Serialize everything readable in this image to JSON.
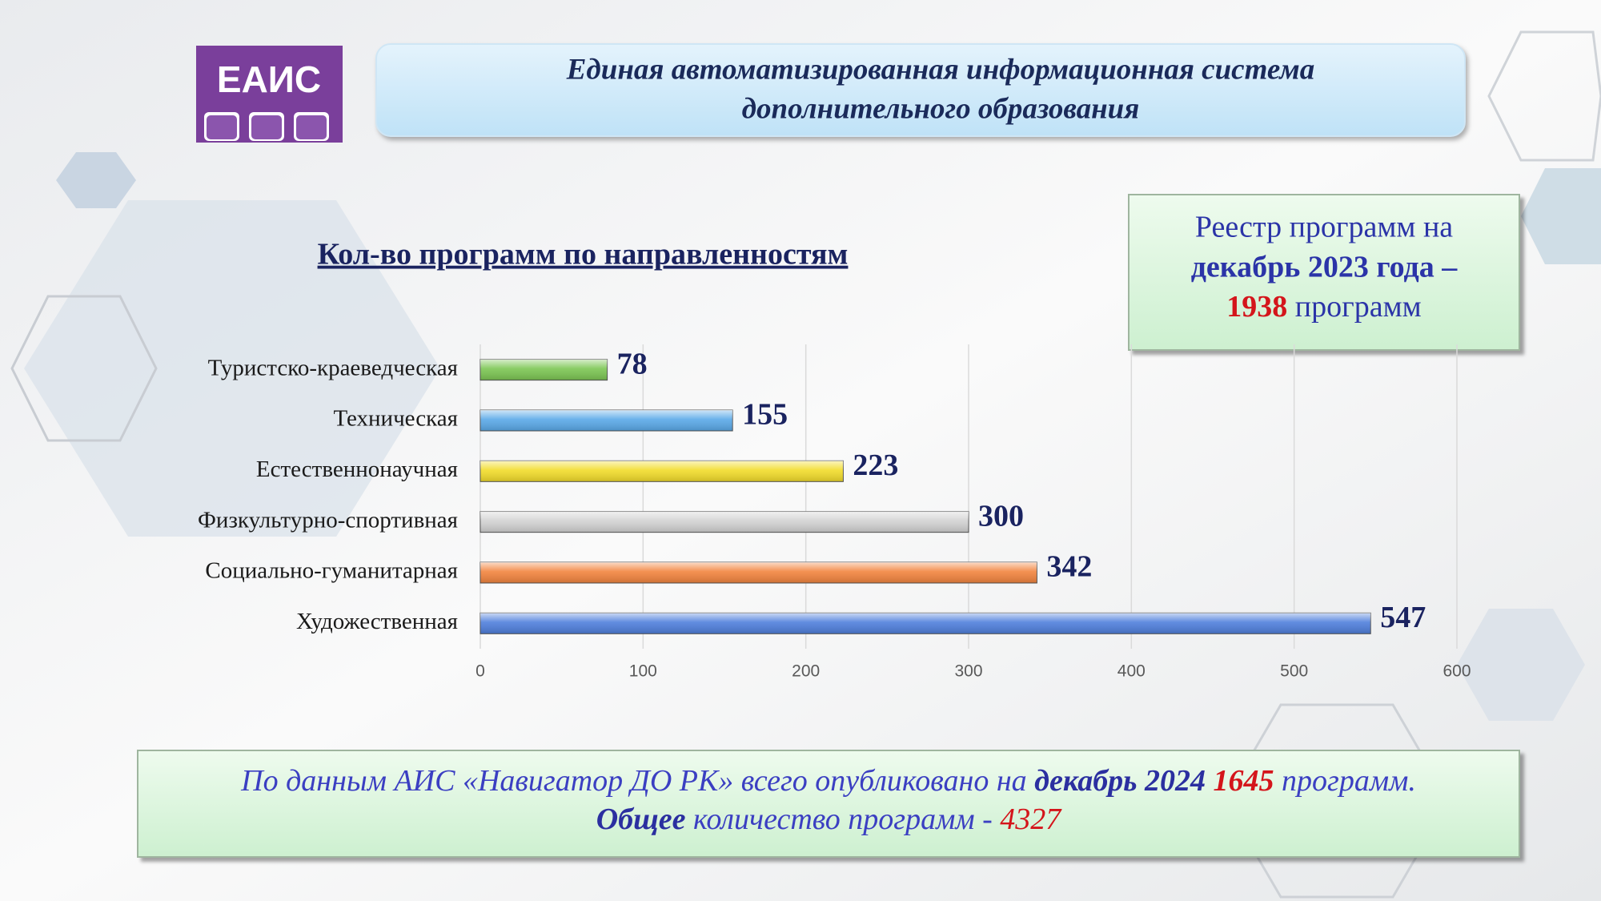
{
  "logo": "ЕАИС",
  "header": {
    "line1": "Единая автоматизированная информационная система",
    "line2": "дополнительного образования"
  },
  "registry": {
    "line1": "Реестр программ на",
    "line2": "декабрь 2023 года –",
    "count": "1938",
    "count_suffix": "программ"
  },
  "note": {
    "part1": "По данным АИС «Навигатор ДО РК» всего опубликовано на",
    "date": "декабрь 2024",
    "count": "1645",
    "suffix": "программ.",
    "total_word": "Общее",
    "total_text": "количество программ -",
    "total": "4327"
  },
  "chart_data": {
    "type": "hbar",
    "title": "Кол-во программ по направленностям",
    "categories": [
      "Туристско-краеведческая",
      "Техническая",
      "Естественнонаучная",
      "Физкультурно-спортивная",
      "Социально-гуманитарная",
      "Художественная"
    ],
    "values": [
      78,
      155,
      223,
      300,
      342,
      547
    ],
    "colors": [
      "#7cc653",
      "#5aa9e8",
      "#f2dc2a",
      "#d2d2d2",
      "#f2843e",
      "#4f7fdc"
    ],
    "xlim": [
      0,
      600
    ],
    "xticks": [
      0,
      100,
      200,
      300,
      400,
      500,
      600
    ],
    "grid": true
  }
}
